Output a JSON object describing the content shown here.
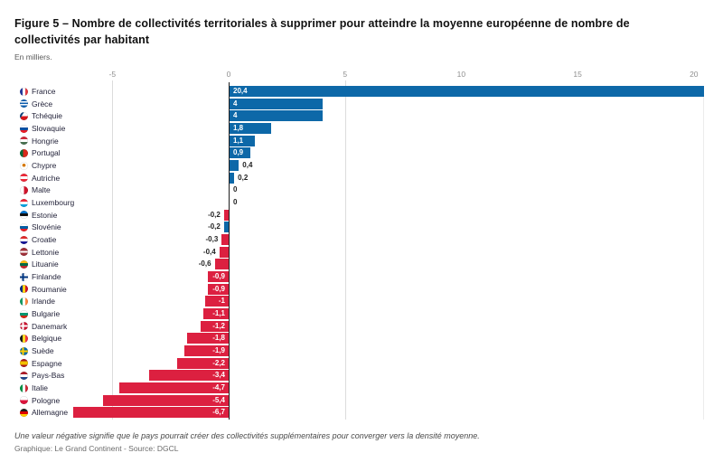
{
  "header": {
    "title": "Figure 5 – Nombre de collectivités territoriales à supprimer pour atteindre la moyenne européenne de nombre de collectivités par habitant",
    "subtitle": "En milliers."
  },
  "footer": {
    "note": "Une valeur négative signifie que le pays pourrait créer des collectivités supplémentaires pour converger vers la densité moyenne.",
    "credit": "Graphique: Le Grand Continent - Source: DGCL"
  },
  "chart_data": {
    "type": "bar",
    "orientation": "horizontal",
    "title": "Figure 5 – Nombre de collectivités territoriales à supprimer pour atteindre la moyenne européenne de nombre de collectivités par habitant",
    "subtitle": "En milliers.",
    "xlabel": "",
    "ylabel": "",
    "xlim": [
      -5.6,
      20.4
    ],
    "x_ticks": [
      -5,
      0,
      5,
      10,
      15,
      20
    ],
    "gridline_ticks": [
      -5,
      5
    ],
    "grid": true,
    "legend_position": "none",
    "colors": {
      "blue": "#0d68a8",
      "red": "#dc2040"
    },
    "inside_label_threshold": 0.9,
    "series": [
      {
        "country": "France",
        "flag": "fr",
        "value": 20.4,
        "label": "20,4",
        "color": "blue"
      },
      {
        "country": "Grèce",
        "flag": "gr",
        "value": 4,
        "label": "4",
        "color": "blue"
      },
      {
        "country": "Tchéquie",
        "flag": "cz",
        "value": 4,
        "label": "4",
        "color": "blue"
      },
      {
        "country": "Slovaquie",
        "flag": "sk",
        "value": 1.8,
        "label": "1,8",
        "color": "blue"
      },
      {
        "country": "Hongrie",
        "flag": "hu",
        "value": 1.1,
        "label": "1,1",
        "color": "blue"
      },
      {
        "country": "Portugal",
        "flag": "pt",
        "value": 0.9,
        "label": "0,9",
        "color": "blue"
      },
      {
        "country": "Chypre",
        "flag": "cy",
        "value": 0.4,
        "label": "0,4",
        "color": "blue"
      },
      {
        "country": "Autriche",
        "flag": "at",
        "value": 0.2,
        "label": "0,2",
        "color": "blue"
      },
      {
        "country": "Malte",
        "flag": "mt",
        "value": 0,
        "label": "0",
        "color": "blue"
      },
      {
        "country": "Luxembourg",
        "flag": "lu",
        "value": 0,
        "label": "0",
        "color": "blue"
      },
      {
        "country": "Estonie",
        "flag": "ee",
        "value": -0.2,
        "label": "-0,2",
        "color": "red"
      },
      {
        "country": "Slovénie",
        "flag": "si",
        "value": -0.2,
        "label": "-0,2",
        "color": "blue"
      },
      {
        "country": "Croatie",
        "flag": "hr",
        "value": -0.3,
        "label": "-0,3",
        "color": "red"
      },
      {
        "country": "Lettonie",
        "flag": "lv",
        "value": -0.4,
        "label": "-0,4",
        "color": "red"
      },
      {
        "country": "Lituanie",
        "flag": "lt",
        "value": -0.6,
        "label": "-0,6",
        "color": "red"
      },
      {
        "country": "Finlande",
        "flag": "fi",
        "value": -0.9,
        "label": "-0,9",
        "color": "red"
      },
      {
        "country": "Roumanie",
        "flag": "ro",
        "value": -0.9,
        "label": "-0,9",
        "color": "red"
      },
      {
        "country": "Irlande",
        "flag": "ie",
        "value": -1,
        "label": "-1",
        "color": "red"
      },
      {
        "country": "Bulgarie",
        "flag": "bg",
        "value": -1.1,
        "label": "-1,1",
        "color": "red"
      },
      {
        "country": "Danemark",
        "flag": "dk",
        "value": -1.2,
        "label": "-1,2",
        "color": "red"
      },
      {
        "country": "Belgique",
        "flag": "be",
        "value": -1.8,
        "label": "-1,8",
        "color": "red"
      },
      {
        "country": "Suède",
        "flag": "se",
        "value": -1.9,
        "label": "-1,9",
        "color": "red"
      },
      {
        "country": "Espagne",
        "flag": "es",
        "value": -2.2,
        "label": "-2,2",
        "color": "red"
      },
      {
        "country": "Pays-Bas",
        "flag": "nl",
        "value": -3.4,
        "label": "-3,4",
        "color": "red"
      },
      {
        "country": "Italie",
        "flag": "it",
        "value": -4.7,
        "label": "-4,7",
        "color": "red"
      },
      {
        "country": "Pologne",
        "flag": "pl",
        "value": -5.4,
        "label": "-5,4",
        "color": "red"
      },
      {
        "country": "Allemagne",
        "flag": "de",
        "value": -6.7,
        "label": "-6,7",
        "color": "red"
      }
    ]
  }
}
